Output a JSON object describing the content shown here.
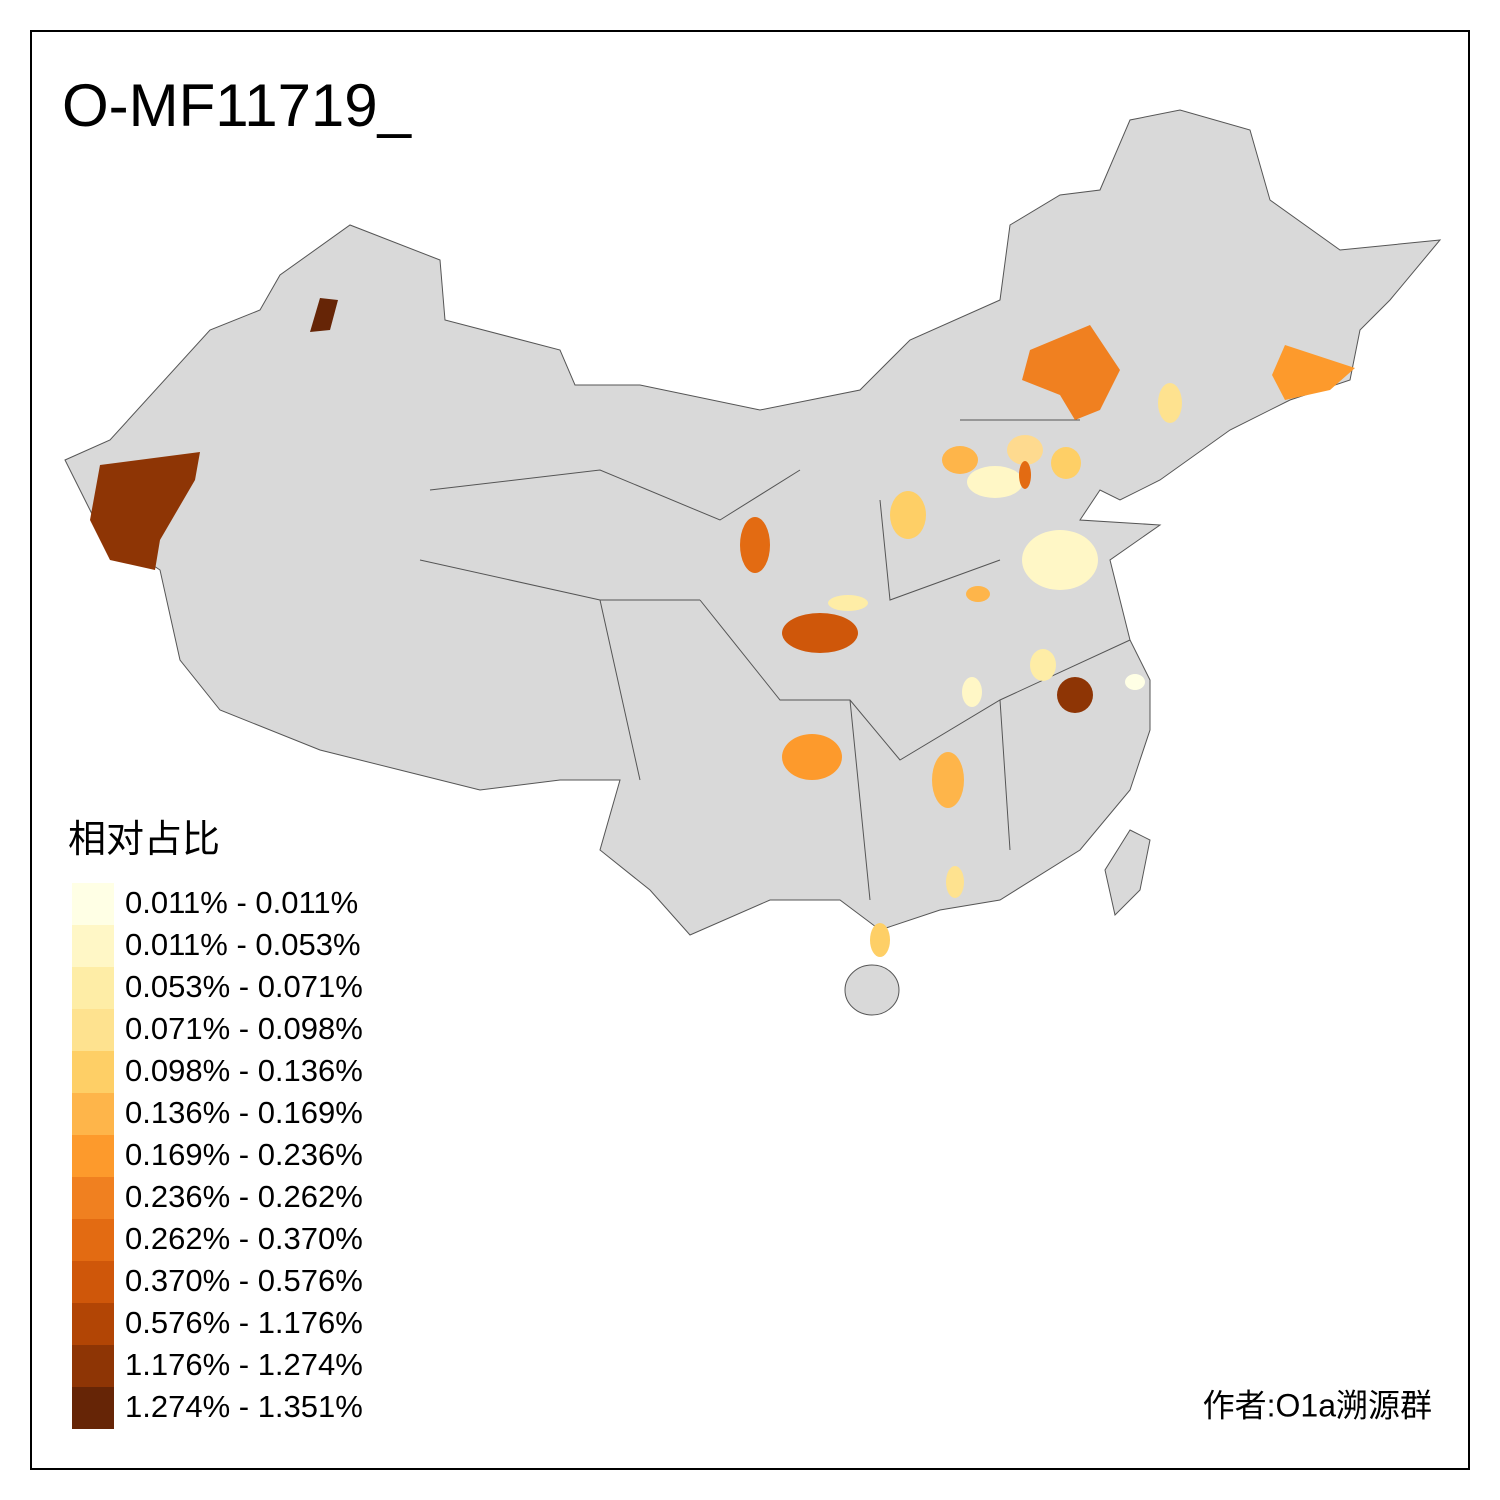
{
  "title": "O-MF11719_",
  "legend": {
    "title": "相对占比",
    "items": [
      {
        "label": "0.011% - 0.011%",
        "color": "#ffffe5"
      },
      {
        "label": "0.011% - 0.053%",
        "color": "#fff7c6"
      },
      {
        "label": "0.053% - 0.071%",
        "color": "#feeda6"
      },
      {
        "label": "0.071% - 0.098%",
        "color": "#fee28f"
      },
      {
        "label": "0.098% - 0.136%",
        "color": "#fecf66"
      },
      {
        "label": "0.136% - 0.169%",
        "color": "#feb54a"
      },
      {
        "label": "0.169% - 0.236%",
        "color": "#fd9a2c"
      },
      {
        "label": "0.236% - 0.262%",
        "color": "#f08020"
      },
      {
        "label": "0.262% - 0.370%",
        "color": "#e36b12"
      },
      {
        "label": "0.370% - 0.576%",
        "color": "#cf570a"
      },
      {
        "label": "0.576% - 1.176%",
        "color": "#b24505"
      },
      {
        "label": "1.176% - 1.274%",
        "color": "#8e3505"
      },
      {
        "label": "1.274% - 1.351%",
        "color": "#662506"
      }
    ]
  },
  "credit": "作者:O1a溯源群"
}
